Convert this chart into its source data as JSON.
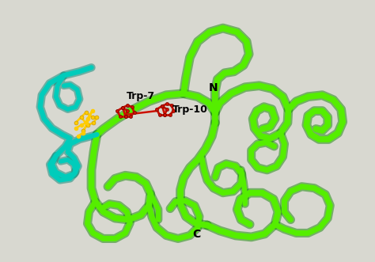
{
  "background_color": "#d8d8d0",
  "ribbon_green": "#55ee00",
  "ribbon_green2": "#44cc00",
  "ribbon_dark_green": "#118800",
  "ribbon_teal": "#00ccbb",
  "ribbon_dark_teal": "#008877",
  "label_trp7": "Trp-7",
  "label_trp10": "Trp-10",
  "label_N": "N",
  "label_C": "C",
  "mol_yellow": "#ffcc00",
  "mol_red": "#cc1100",
  "figsize": [
    4.74,
    3.31
  ],
  "dpi": 100,
  "ribbon_lw": 5.5,
  "ribbon_lw_teal": 4.5
}
